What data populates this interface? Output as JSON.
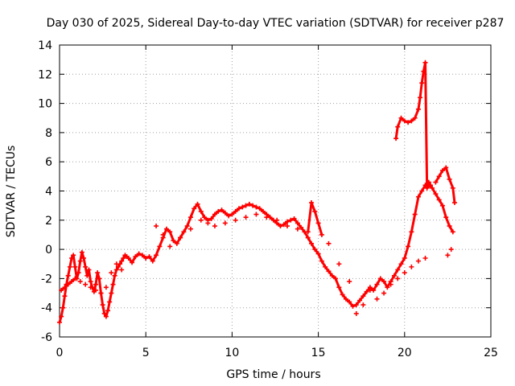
{
  "chart_data": {
    "type": "scatter",
    "title": "Day 030 of 2025, Sidereal Day-to-day VTEC variation (SDTVAR) for receiver p287",
    "xlabel": "GPS time / hours",
    "ylabel": "SDTVAR / TECUs",
    "xlim": [
      0,
      25
    ],
    "ylim": [
      -6,
      14
    ],
    "x_ticks": [
      0,
      5,
      10,
      15,
      20,
      25
    ],
    "y_ticks": [
      -6,
      -4,
      -2,
      0,
      2,
      4,
      6,
      8,
      10,
      12,
      14
    ],
    "x_tick_labels": [
      "0",
      "5",
      "10",
      "15",
      "20",
      "25"
    ],
    "y_tick_labels": [
      "-6",
      "-4",
      "-2",
      "0",
      "2",
      "4",
      "6",
      "8",
      "10",
      "12",
      "14"
    ],
    "grid": true,
    "marker": "+",
    "series": [
      {
        "name": "SDTVAR",
        "color": "#ff0000",
        "x": [
          0.0,
          0.1,
          0.2,
          0.3,
          0.4,
          0.5,
          0.6,
          0.7,
          0.8,
          0.9,
          1.0,
          1.1,
          1.2,
          1.3,
          1.4,
          1.5,
          1.6,
          1.7,
          1.8,
          1.9,
          2.0,
          2.1,
          2.2,
          2.3,
          2.4,
          2.5,
          2.6,
          2.7,
          2.8,
          2.9,
          3.0,
          3.1,
          3.2,
          3.3,
          3.4,
          3.5,
          3.6,
          3.7,
          3.8,
          3.9,
          4.0,
          4.2,
          4.4,
          4.6,
          4.8,
          5.0,
          5.2,
          5.4,
          5.6,
          5.8,
          6.0,
          6.2,
          6.4,
          6.6,
          6.8,
          7.0,
          7.2,
          7.4,
          7.6,
          7.8,
          8.0,
          8.2,
          8.4,
          8.6,
          8.8,
          9.0,
          9.2,
          9.4,
          9.6,
          9.8,
          10.0,
          10.2,
          10.4,
          10.6,
          10.8,
          11.0,
          11.2,
          11.4,
          11.6,
          11.8,
          12.0,
          12.2,
          12.4,
          12.6,
          12.8,
          13.0,
          13.2,
          13.4,
          13.6,
          13.8,
          14.0,
          14.2,
          14.4,
          14.6,
          14.8,
          15.0,
          15.2,
          15.4,
          15.6,
          15.8,
          16.0,
          16.2,
          16.4,
          16.6,
          16.8,
          17.0,
          17.2,
          17.4,
          17.6,
          17.8,
          18.0,
          18.2,
          18.4,
          18.6,
          18.8,
          19.0,
          19.2,
          19.4,
          19.6,
          19.8,
          20.0,
          20.2,
          20.4,
          20.6,
          20.8,
          21.0,
          21.2,
          21.4,
          21.6,
          21.8,
          22.0,
          22.2,
          22.4,
          22.6,
          22.8,
          0.1,
          0.3,
          0.5,
          0.7,
          0.9,
          1.2,
          1.5,
          1.8,
          2.1,
          2.4,
          2.7,
          3.0,
          3.3,
          3.6,
          5.6,
          6.0,
          6.4,
          7.0,
          7.6,
          8.2,
          8.6,
          9.0,
          9.6,
          10.2,
          10.8,
          11.4,
          12.0,
          12.6,
          13.2,
          13.8,
          14.4,
          14.6,
          14.8,
          15.0,
          15.2,
          15.6,
          16.2,
          16.8,
          17.2,
          17.6,
          18.0,
          18.4,
          18.8,
          19.2,
          19.6,
          20.0,
          20.4,
          20.8,
          21.2,
          19.5,
          19.6,
          19.8,
          20.0,
          20.2,
          20.4,
          20.6,
          20.8,
          20.9,
          21.0,
          21.1,
          21.2,
          21.3,
          21.5,
          21.8,
          22.0,
          22.2,
          22.4,
          22.6,
          22.8,
          22.9,
          22.7,
          22.5
        ],
        "y": [
          -5.0,
          -4.6,
          -4.0,
          -3.2,
          -2.4,
          -1.8,
          -1.2,
          -0.6,
          -0.4,
          -1.2,
          -2.0,
          -1.6,
          -0.8,
          -0.2,
          -0.6,
          -1.2,
          -1.8,
          -1.4,
          -2.2,
          -2.6,
          -2.9,
          -2.4,
          -1.6,
          -2.0,
          -3.0,
          -3.8,
          -4.4,
          -4.6,
          -4.2,
          -3.6,
          -3.0,
          -2.4,
          -1.8,
          -1.4,
          -1.2,
          -1.0,
          -0.8,
          -0.6,
          -0.4,
          -0.5,
          -0.6,
          -0.9,
          -0.5,
          -0.3,
          -0.4,
          -0.6,
          -0.5,
          -0.8,
          -0.4,
          0.2,
          0.8,
          1.4,
          1.2,
          0.6,
          0.4,
          0.8,
          1.2,
          1.6,
          2.2,
          2.8,
          3.1,
          2.6,
          2.2,
          2.0,
          2.1,
          2.4,
          2.6,
          2.7,
          2.5,
          2.3,
          2.4,
          2.6,
          2.8,
          2.9,
          3.0,
          3.1,
          3.0,
          2.9,
          2.8,
          2.6,
          2.4,
          2.2,
          2.0,
          1.8,
          1.6,
          1.7,
          1.9,
          2.0,
          2.1,
          1.8,
          1.5,
          1.2,
          0.8,
          0.4,
          0.0,
          -0.3,
          -0.8,
          -1.2,
          -1.5,
          -1.8,
          -2.0,
          -2.6,
          -3.1,
          -3.4,
          -3.6,
          -3.9,
          -3.8,
          -3.5,
          -3.2,
          -2.9,
          -2.6,
          -2.8,
          -2.4,
          -2.0,
          -2.2,
          -2.6,
          -2.2,
          -1.8,
          -1.4,
          -1.0,
          -0.6,
          0.2,
          1.2,
          2.4,
          3.6,
          4.0,
          4.4,
          4.6,
          4.2,
          3.8,
          3.4,
          3.0,
          2.2,
          1.6,
          1.2,
          -2.8,
          -2.6,
          -2.4,
          -2.2,
          -2.0,
          -2.2,
          -2.4,
          -2.6,
          -2.8,
          -3.0,
          -2.6,
          -1.6,
          -1.0,
          -1.4,
          1.6,
          1.0,
          0.2,
          0.8,
          1.4,
          2.0,
          1.8,
          1.6,
          1.8,
          2.0,
          2.2,
          2.4,
          2.2,
          2.0,
          1.6,
          1.4,
          1.2,
          3.2,
          2.6,
          1.8,
          1.0,
          0.4,
          -1.0,
          -2.2,
          -4.4,
          -3.8,
          -2.8,
          -3.4,
          -3.0,
          -2.4,
          -2.0,
          -1.6,
          -1.2,
          -0.8,
          -0.6,
          7.6,
          8.4,
          9.0,
          8.8,
          8.7,
          8.8,
          9.0,
          9.6,
          10.4,
          11.4,
          12.2,
          12.8,
          4.2,
          4.4,
          4.6,
          5.0,
          5.4,
          5.6,
          4.8,
          4.2,
          3.2,
          0.0,
          -0.4
        ],
        "label": "SDTVAR"
      }
    ]
  }
}
